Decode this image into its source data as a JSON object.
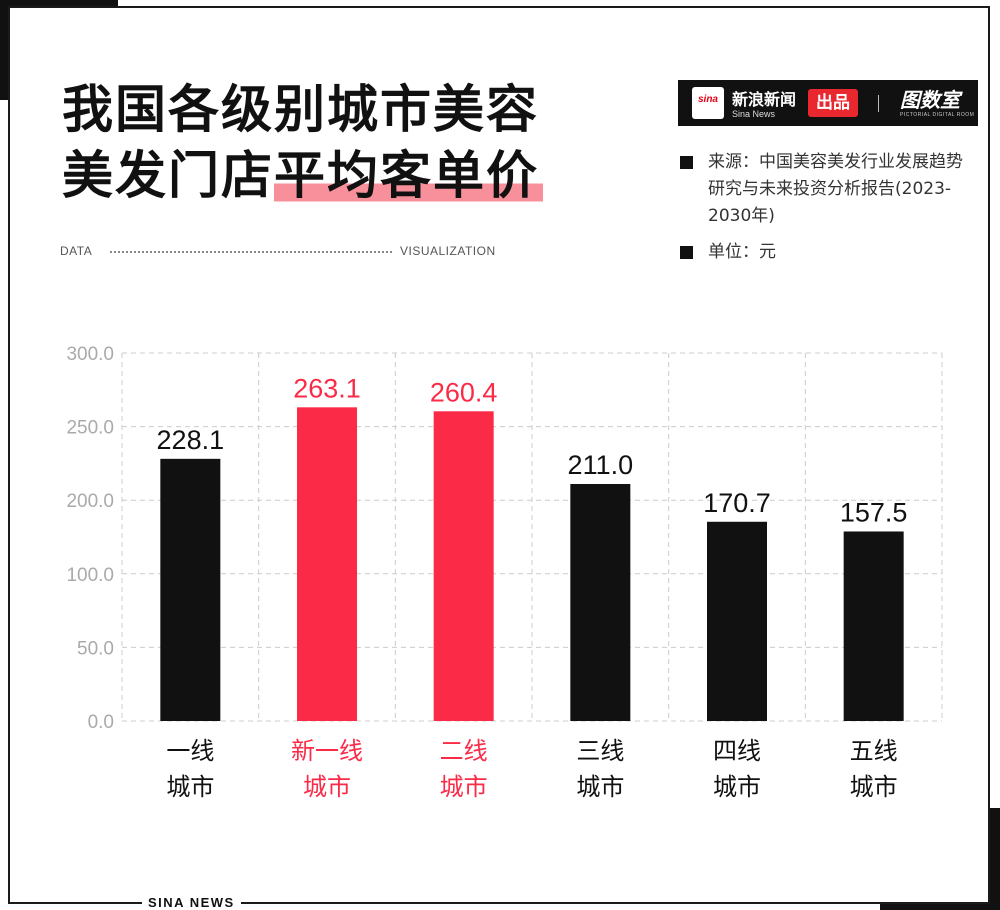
{
  "title": {
    "line1": "我国各级别城市美容",
    "line2_plain": "美发门店",
    "line2_highlight": "平均客单价"
  },
  "tagline": {
    "left": "DATA",
    "right": "VISUALIZATION"
  },
  "brand": {
    "logo_text": "sina",
    "name": "新浪新闻",
    "name_en": "Sina News",
    "badge": "出品",
    "partner": "图数室",
    "partner_sub": "PICTORIAL DIGITAL ROOM"
  },
  "source": "来源：中国美容美发行业发展趋势研究与未来投资分析报告(2023-2030年)",
  "unit": "单位：元",
  "footer": "SINA NEWS",
  "colors": {
    "dark": "#111111",
    "accent": "#fb2b48",
    "highlight": "#f7909a",
    "grid": "#cccccc"
  },
  "chart_data": {
    "type": "bar",
    "categories": [
      "一线\n城市",
      "新一线\n城市",
      "二线\n城市",
      "三线\n城市",
      "四线\n城市",
      "五线\n城市"
    ],
    "values": [
      228.1,
      263.1,
      260.4,
      211.0,
      170.7,
      157.5
    ],
    "value_labels": [
      "228.1",
      "263.1",
      "260.4",
      "211.0",
      "170.7",
      "157.5"
    ],
    "highlighted": [
      false,
      true,
      true,
      false,
      false,
      false
    ],
    "y_ticks": [
      "0.0",
      "50.0",
      "100.0",
      "200.0",
      "250.0",
      "300.0"
    ],
    "grid": true
  }
}
